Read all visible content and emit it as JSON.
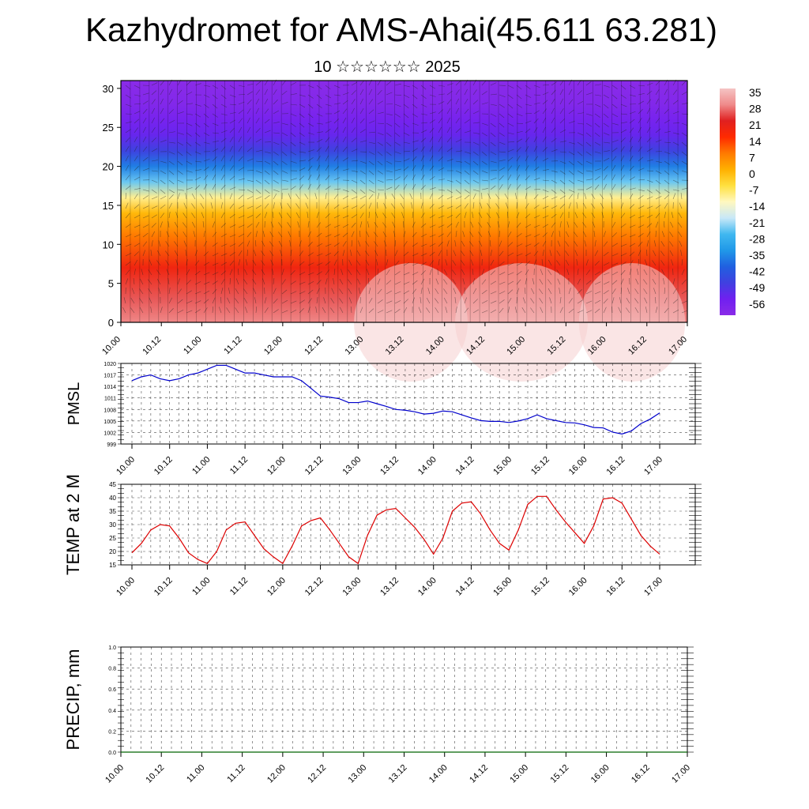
{
  "title": "Kazhydromet for AMS-Ahai(45.611 63.281)",
  "subtitle": "10 ☆☆☆☆☆☆ 2025",
  "chart_data": [
    {
      "type": "heatmap",
      "description_role": "vertical cross-section, temperature shading with wind barbs",
      "x_ticks": [
        "10.00",
        "10.12",
        "11.00",
        "11.12",
        "12.00",
        "12.12",
        "13.00",
        "13.12",
        "14.00",
        "14.12",
        "15.00",
        "15.12",
        "16.00",
        "16.12",
        "17.00"
      ],
      "y_ticks": [
        "0",
        "5",
        "10",
        "15",
        "20",
        "25",
        "30"
      ],
      "ylim": [
        0,
        31
      ],
      "colorbar": {
        "labels": [
          "35",
          "28",
          "21",
          "14",
          "7",
          "0",
          "-7",
          "-14",
          "-21",
          "-28",
          "-35",
          "-42",
          "-49",
          "-56"
        ],
        "colors": [
          "#f5c4c4",
          "#ef8a8a",
          "#e02020",
          "#ff2a00",
          "#ff7a00",
          "#ffb000",
          "#ffe040",
          "#fff8c0",
          "#c8e8f8",
          "#40b8f0",
          "#2098e8",
          "#2060e0",
          "#4040e0",
          "#7020f0",
          "#8a2be8"
        ]
      },
      "temperature_profile": [
        {
          "height": 0,
          "value": 28
        },
        {
          "height": 3,
          "value": 25
        },
        {
          "height": 7,
          "value": 18
        },
        {
          "height": 11,
          "value": 8
        },
        {
          "height": 14,
          "value": 0
        },
        {
          "height": 16,
          "value": -10
        },
        {
          "height": 18,
          "value": -24
        },
        {
          "height": 20,
          "value": -36
        },
        {
          "height": 22,
          "value": -46
        },
        {
          "height": 24,
          "value": -52
        },
        {
          "height": 26,
          "value": -55
        },
        {
          "height": 28,
          "value": -58
        },
        {
          "height": 31,
          "value": -60
        }
      ],
      "grid": true
    },
    {
      "type": "line",
      "ylabel": "PMSL",
      "y_ticks": [
        "999",
        "1002",
        "1005",
        "1008",
        "1011",
        "1014",
        "1017",
        "1020"
      ],
      "ylim": [
        999,
        1020
      ],
      "x_ticks": [
        "10.00",
        "10.12",
        "11.00",
        "11.12",
        "12.00",
        "12.12",
        "13.00",
        "13.12",
        "14.00",
        "14.12",
        "15.00",
        "15.12",
        "16.00",
        "16.12",
        "17.00"
      ],
      "series": [
        {
          "color": "#0000cc",
          "x": [
            0,
            3,
            6,
            9,
            12,
            15,
            18,
            21,
            24,
            27,
            30,
            33,
            36,
            39,
            42,
            45,
            48,
            51,
            54,
            57,
            60,
            63,
            66,
            69,
            72,
            75,
            78,
            81,
            84,
            87,
            90,
            93,
            96,
            99,
            102,
            105,
            108,
            111,
            114,
            117,
            120,
            123,
            126,
            129,
            132,
            135,
            138,
            141,
            144,
            147,
            150,
            153,
            156,
            159,
            162,
            165,
            168
          ],
          "values": [
            1015.5,
            1016.5,
            1017,
            1016,
            1015.5,
            1016,
            1017,
            1017.5,
            1018.5,
            1019.5,
            1019.5,
            1018.5,
            1017.5,
            1017.5,
            1017,
            1016.5,
            1016.5,
            1016.5,
            1015.5,
            1013.5,
            1011.5,
            1011.2,
            1010.8,
            1009.8,
            1009.8,
            1010.2,
            1009.5,
            1008.8,
            1008,
            1007.8,
            1007.4,
            1006.8,
            1007,
            1007.6,
            1007.4,
            1006.6,
            1005.8,
            1005.1,
            1004.9,
            1004.9,
            1004.6,
            1005,
            1005.6,
            1006.6,
            1005.6,
            1005.1,
            1004.6,
            1004.5,
            1004,
            1003.3,
            1003.2,
            1002.1,
            1001.6,
            1002.4,
            1004.3,
            1005.5,
            1007.1
          ]
        }
      ],
      "grid": true
    },
    {
      "type": "line",
      "ylabel": "TEMP at 2 M",
      "y_ticks": [
        "15",
        "20",
        "25",
        "30",
        "35",
        "40",
        "45"
      ],
      "ylim": [
        15,
        45
      ],
      "x_ticks": [
        "10.00",
        "10.12",
        "11.00",
        "11.12",
        "12.00",
        "12.12",
        "13.00",
        "13.12",
        "14.00",
        "14.12",
        "15.00",
        "15.12",
        "16.00",
        "16.12",
        "17.00"
      ],
      "series": [
        {
          "color": "#dd0000",
          "x": [
            0,
            3,
            6,
            9,
            12,
            15,
            18,
            21,
            24,
            27,
            30,
            33,
            36,
            39,
            42,
            45,
            48,
            51,
            54,
            57,
            60,
            63,
            66,
            69,
            72,
            75,
            78,
            81,
            84,
            87,
            90,
            93,
            96,
            99,
            102,
            105,
            108,
            111,
            114,
            117,
            120,
            123,
            126,
            129,
            132,
            135,
            138,
            141,
            144,
            147,
            150,
            153,
            156,
            159,
            162,
            165,
            168
          ],
          "values": [
            19.5,
            23,
            28,
            30,
            29.5,
            25,
            19.5,
            17,
            15.5,
            20,
            28,
            30.5,
            31,
            26,
            21,
            18,
            15.5,
            22,
            29.5,
            31.5,
            32.5,
            28,
            23,
            18,
            15.5,
            26,
            33.5,
            35.5,
            36,
            32.5,
            29,
            24.5,
            19,
            25,
            35,
            38,
            38.5,
            34,
            28,
            23,
            20.5,
            28,
            37.5,
            40.5,
            40.5,
            35.5,
            31,
            27,
            23,
            29.5,
            39.5,
            40,
            38,
            32,
            26,
            22,
            19
          ]
        }
      ],
      "grid": true
    },
    {
      "type": "line",
      "ylabel": "PRECIP, mm",
      "y_ticks": [
        "0.0",
        "0.2",
        "0.4",
        "0.6",
        "0.8",
        "1.0"
      ],
      "ylim": [
        0,
        1
      ],
      "x_ticks": [
        "10.00",
        "10.12",
        "11.00",
        "11.12",
        "12.00",
        "12.12",
        "13.00",
        "13.12",
        "14.00",
        "14.12",
        "15.00",
        "15.12",
        "16.00",
        "16.12",
        "17.00"
      ],
      "series": [
        {
          "color": "#006400",
          "x": [
            0,
            168
          ],
          "values": [
            0,
            0
          ]
        }
      ],
      "grid": true
    }
  ]
}
